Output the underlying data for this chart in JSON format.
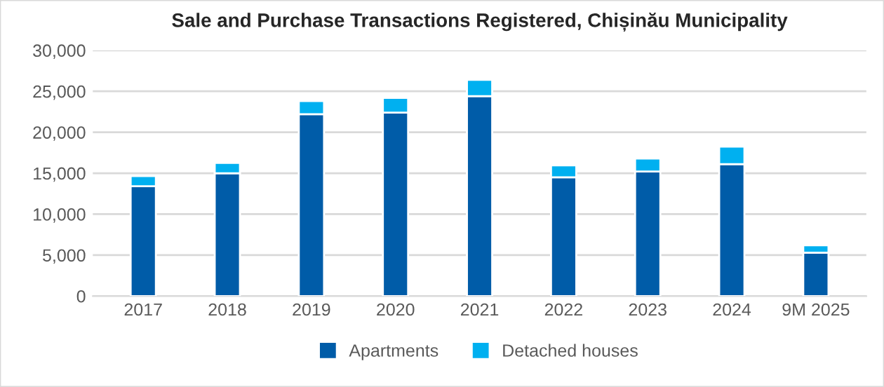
{
  "chart_data": {
    "type": "bar",
    "title": "Sale and Purchase Transactions Registered, Chișinău Municipality",
    "categories": [
      "2017",
      "2018",
      "2019",
      "2020",
      "2021",
      "2022",
      "2023",
      "2024",
      "9M 2025"
    ],
    "stacked": true,
    "series": [
      {
        "name": "Apartments",
        "color": "#005ca8",
        "values": [
          13400,
          15000,
          22200,
          22400,
          24400,
          14500,
          15200,
          16100,
          5300
        ]
      },
      {
        "name": "Detached houses",
        "color": "#00b0f0",
        "values": [
          1250,
          1250,
          1600,
          1800,
          2000,
          1450,
          1600,
          2150,
          900
        ]
      }
    ],
    "ylim": [
      0,
      30000
    ],
    "yticks": [
      {
        "value": 0,
        "label": "0"
      },
      {
        "value": 5000,
        "label": "5,000"
      },
      {
        "value": 10000,
        "label": "10,000"
      },
      {
        "value": 15000,
        "label": "15,000"
      },
      {
        "value": 20000,
        "label": "20,000"
      },
      {
        "value": 25000,
        "label": "25,000"
      },
      {
        "value": 30000,
        "label": "30,000"
      }
    ],
    "grid": "y",
    "legend": "bottom"
  }
}
